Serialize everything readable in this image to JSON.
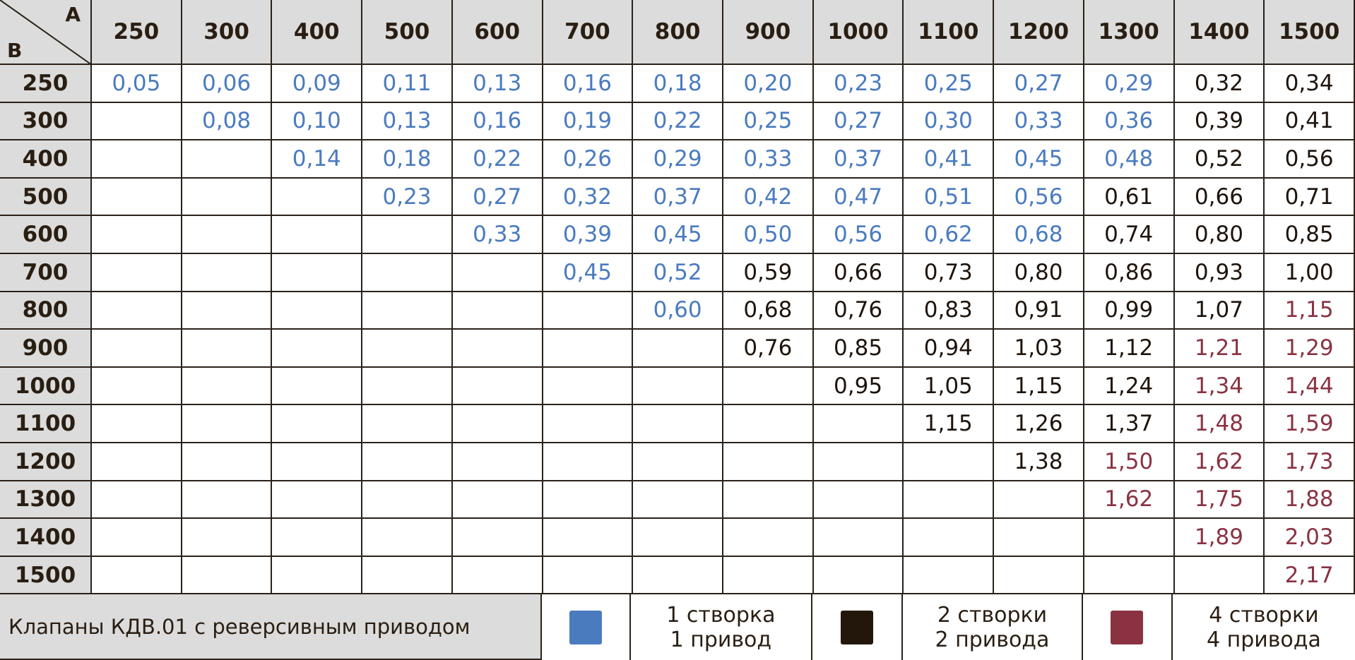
{
  "table": {
    "corner": {
      "a": "A",
      "b": "B"
    },
    "columns": [
      "250",
      "300",
      "400",
      "500",
      "600",
      "700",
      "800",
      "900",
      "1000",
      "1100",
      "1200",
      "1300",
      "1400",
      "1500"
    ],
    "rows": [
      {
        "label": "250",
        "cells": [
          {
            "text": "0,05",
            "color": "#4a7bbf"
          },
          {
            "text": "0,06",
            "color": "#4a7bbf"
          },
          {
            "text": "0,09",
            "color": "#4a7bbf"
          },
          {
            "text": "0,11",
            "color": "#4a7bbf"
          },
          {
            "text": "0,13",
            "color": "#4a7bbf"
          },
          {
            "text": "0,16",
            "color": "#4a7bbf"
          },
          {
            "text": "0,18",
            "color": "#4a7bbf"
          },
          {
            "text": "0,20",
            "color": "#4a7bbf"
          },
          {
            "text": "0,23",
            "color": "#4a7bbf"
          },
          {
            "text": "0,25",
            "color": "#4a7bbf"
          },
          {
            "text": "0,27",
            "color": "#4a7bbf"
          },
          {
            "text": "0,29",
            "color": "#4a7bbf"
          },
          {
            "text": "0,32",
            "color": "#1e140c"
          },
          {
            "text": "0,34",
            "color": "#1e140c"
          }
        ]
      },
      {
        "label": "300",
        "cells": [
          null,
          {
            "text": "0,08",
            "color": "#4a7bbf"
          },
          {
            "text": "0,10",
            "color": "#4a7bbf"
          },
          {
            "text": "0,13",
            "color": "#4a7bbf"
          },
          {
            "text": "0,16",
            "color": "#4a7bbf"
          },
          {
            "text": "0,19",
            "color": "#4a7bbf"
          },
          {
            "text": "0,22",
            "color": "#4a7bbf"
          },
          {
            "text": "0,25",
            "color": "#4a7bbf"
          },
          {
            "text": "0,27",
            "color": "#4a7bbf"
          },
          {
            "text": "0,30",
            "color": "#4a7bbf"
          },
          {
            "text": "0,33",
            "color": "#4a7bbf"
          },
          {
            "text": "0,36",
            "color": "#4a7bbf"
          },
          {
            "text": "0,39",
            "color": "#1e140c"
          },
          {
            "text": "0,41",
            "color": "#1e140c"
          }
        ]
      },
      {
        "label": "400",
        "cells": [
          null,
          null,
          {
            "text": "0,14",
            "color": "#4a7bbf"
          },
          {
            "text": "0,18",
            "color": "#4a7bbf"
          },
          {
            "text": "0,22",
            "color": "#4a7bbf"
          },
          {
            "text": "0,26",
            "color": "#4a7bbf"
          },
          {
            "text": "0,29",
            "color": "#4a7bbf"
          },
          {
            "text": "0,33",
            "color": "#4a7bbf"
          },
          {
            "text": "0,37",
            "color": "#4a7bbf"
          },
          {
            "text": "0,41",
            "color": "#4a7bbf"
          },
          {
            "text": "0,45",
            "color": "#4a7bbf"
          },
          {
            "text": "0,48",
            "color": "#4a7bbf"
          },
          {
            "text": "0,52",
            "color": "#1e140c"
          },
          {
            "text": "0,56",
            "color": "#1e140c"
          }
        ]
      },
      {
        "label": "500",
        "cells": [
          null,
          null,
          null,
          {
            "text": "0,23",
            "color": "#4a7bbf"
          },
          {
            "text": "0,27",
            "color": "#4a7bbf"
          },
          {
            "text": "0,32",
            "color": "#4a7bbf"
          },
          {
            "text": "0,37",
            "color": "#4a7bbf"
          },
          {
            "text": "0,42",
            "color": "#4a7bbf"
          },
          {
            "text": "0,47",
            "color": "#4a7bbf"
          },
          {
            "text": "0,51",
            "color": "#4a7bbf"
          },
          {
            "text": "0,56",
            "color": "#4a7bbf"
          },
          {
            "text": "0,61",
            "color": "#1e140c"
          },
          {
            "text": "0,66",
            "color": "#1e140c"
          },
          {
            "text": "0,71",
            "color": "#1e140c"
          }
        ]
      },
      {
        "label": "600",
        "cells": [
          null,
          null,
          null,
          null,
          {
            "text": "0,33",
            "color": "#4a7bbf"
          },
          {
            "text": "0,39",
            "color": "#4a7bbf"
          },
          {
            "text": "0,45",
            "color": "#4a7bbf"
          },
          {
            "text": "0,50",
            "color": "#4a7bbf"
          },
          {
            "text": "0,56",
            "color": "#4a7bbf"
          },
          {
            "text": "0,62",
            "color": "#4a7bbf"
          },
          {
            "text": "0,68",
            "color": "#4a7bbf"
          },
          {
            "text": "0,74",
            "color": "#1e140c"
          },
          {
            "text": "0,80",
            "color": "#1e140c"
          },
          {
            "text": "0,85",
            "color": "#1e140c"
          }
        ]
      },
      {
        "label": "700",
        "cells": [
          null,
          null,
          null,
          null,
          null,
          {
            "text": "0,45",
            "color": "#4a7bbf"
          },
          {
            "text": "0,52",
            "color": "#4a7bbf"
          },
          {
            "text": "0,59",
            "color": "#1e140c"
          },
          {
            "text": "0,66",
            "color": "#1e140c"
          },
          {
            "text": "0,73",
            "color": "#1e140c"
          },
          {
            "text": "0,80",
            "color": "#1e140c"
          },
          {
            "text": "0,86",
            "color": "#1e140c"
          },
          {
            "text": "0,93",
            "color": "#1e140c"
          },
          {
            "text": "1,00",
            "color": "#1e140c"
          }
        ]
      },
      {
        "label": "800",
        "cells": [
          null,
          null,
          null,
          null,
          null,
          null,
          {
            "text": "0,60",
            "color": "#4a7bbf"
          },
          {
            "text": "0,68",
            "color": "#1e140c"
          },
          {
            "text": "0,76",
            "color": "#1e140c"
          },
          {
            "text": "0,83",
            "color": "#1e140c"
          },
          {
            "text": "0,91",
            "color": "#1e140c"
          },
          {
            "text": "0,99",
            "color": "#1e140c"
          },
          {
            "text": "1,07",
            "color": "#1e140c"
          },
          {
            "text": "1,15",
            "color": "#8a3242"
          }
        ]
      },
      {
        "label": "900",
        "cells": [
          null,
          null,
          null,
          null,
          null,
          null,
          null,
          {
            "text": "0,76",
            "color": "#1e140c"
          },
          {
            "text": "0,85",
            "color": "#1e140c"
          },
          {
            "text": "0,94",
            "color": "#1e140c"
          },
          {
            "text": "1,03",
            "color": "#1e140c"
          },
          {
            "text": "1,12",
            "color": "#1e140c"
          },
          {
            "text": "1,21",
            "color": "#8a3242"
          },
          {
            "text": "1,29",
            "color": "#8a3242"
          }
        ]
      },
      {
        "label": "1000",
        "cells": [
          null,
          null,
          null,
          null,
          null,
          null,
          null,
          null,
          {
            "text": "0,95",
            "color": "#1e140c"
          },
          {
            "text": "1,05",
            "color": "#1e140c"
          },
          {
            "text": "1,15",
            "color": "#1e140c"
          },
          {
            "text": "1,24",
            "color": "#1e140c"
          },
          {
            "text": "1,34",
            "color": "#8a3242"
          },
          {
            "text": "1,44",
            "color": "#8a3242"
          }
        ]
      },
      {
        "label": "1100",
        "cells": [
          null,
          null,
          null,
          null,
          null,
          null,
          null,
          null,
          null,
          {
            "text": "1,15",
            "color": "#1e140c"
          },
          {
            "text": "1,26",
            "color": "#1e140c"
          },
          {
            "text": "1,37",
            "color": "#1e140c"
          },
          {
            "text": "1,48",
            "color": "#8a3242"
          },
          {
            "text": "1,59",
            "color": "#8a3242"
          }
        ]
      },
      {
        "label": "1200",
        "cells": [
          null,
          null,
          null,
          null,
          null,
          null,
          null,
          null,
          null,
          null,
          {
            "text": "1,38",
            "color": "#1e140c"
          },
          {
            "text": "1,50",
            "color": "#8a3242"
          },
          {
            "text": "1,62",
            "color": "#8a3242"
          },
          {
            "text": "1,73",
            "color": "#8a3242"
          }
        ]
      },
      {
        "label": "1300",
        "cells": [
          null,
          null,
          null,
          null,
          null,
          null,
          null,
          null,
          null,
          null,
          null,
          {
            "text": "1,62",
            "color": "#8a3242"
          },
          {
            "text": "1,75",
            "color": "#8a3242"
          },
          {
            "text": "1,88",
            "color": "#8a3242"
          }
        ]
      },
      {
        "label": "1400",
        "cells": [
          null,
          null,
          null,
          null,
          null,
          null,
          null,
          null,
          null,
          null,
          null,
          null,
          {
            "text": "1,89",
            "color": "#8a3242"
          },
          {
            "text": "2,03",
            "color": "#8a3242"
          }
        ]
      },
      {
        "label": "1500",
        "cells": [
          null,
          null,
          null,
          null,
          null,
          null,
          null,
          null,
          null,
          null,
          null,
          null,
          null,
          {
            "text": "2,17",
            "color": "#8a3242"
          }
        ]
      }
    ]
  },
  "legend": {
    "title": "Клапаны КДВ.01 с реверсивным приводом",
    "items": [
      {
        "color": "#4a7bbf",
        "lines": [
          "1 створка",
          "1 привод"
        ]
      },
      {
        "color": "#23170c",
        "lines": [
          "2 створки",
          "2 привода"
        ]
      },
      {
        "color": "#8a3242",
        "lines": [
          "4 створки",
          "4 привода"
        ]
      }
    ]
  }
}
